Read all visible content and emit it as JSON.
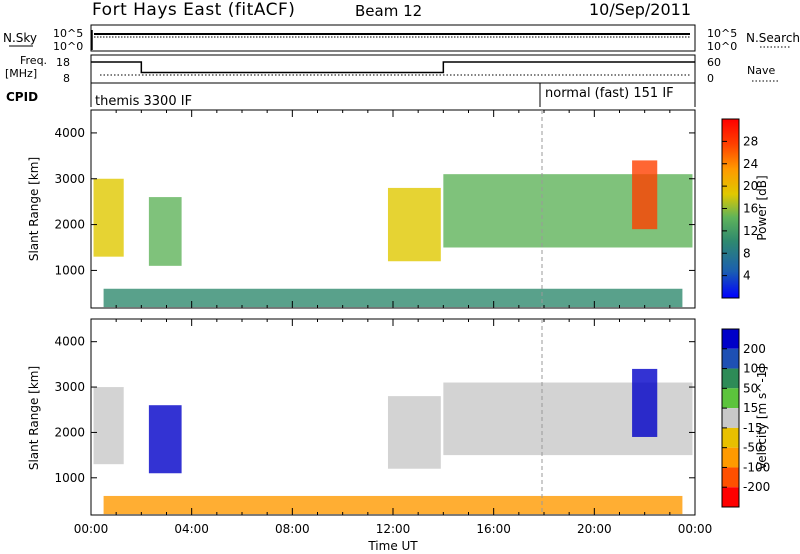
{
  "header": {
    "station": "Fort Hays East (fitACF)",
    "beam": "Beam 12",
    "date": "10/Sep/2011"
  },
  "noise_panel": {
    "left_label": "N.Sky",
    "right_label": "N.Search",
    "left_ticks": [
      "10^5",
      "10^0"
    ],
    "right_ticks": [
      "10^5",
      "10^0"
    ]
  },
  "freq_panel": {
    "left_label_1": "Freq.",
    "left_label_2": "[MHz]",
    "left_ticks": [
      "18",
      "8"
    ],
    "right_label": "Nave",
    "right_ticks": [
      "60",
      "0"
    ],
    "freq_levels": [
      {
        "from_hour": 0.0,
        "to_hour": 2.0,
        "mhz": 18
      },
      {
        "from_hour": 2.0,
        "to_hour": 14.0,
        "mhz": 13
      },
      {
        "from_hour": 14.0,
        "to_hour": 24.0,
        "mhz": 18
      }
    ]
  },
  "cpid": {
    "label": "CPID",
    "segments": [
      {
        "start_hour": 0.0,
        "text": "themis 3300 IF"
      },
      {
        "start_hour": 18.0,
        "text": "normal (fast) 151 IF"
      }
    ]
  },
  "x_axis": {
    "label": "Time UT",
    "ticks": [
      "00:00",
      "04:00",
      "08:00",
      "12:00",
      "16:00",
      "20:00",
      "00:00"
    ]
  },
  "chart_data": [
    {
      "type": "heatmap",
      "title": "",
      "xlabel": "Time UT",
      "ylabel": "Slant Range [km]",
      "xlim": [
        0,
        24
      ],
      "ylim": [
        180,
        4500
      ],
      "yticks": [
        "1000",
        "2000",
        "3000",
        "4000"
      ],
      "colorbar": {
        "label": "Power [dB]",
        "ticks": [
          "4",
          "8",
          "12",
          "16",
          "20",
          "24",
          "28"
        ],
        "range": [
          0,
          32
        ],
        "colors": [
          "#0000ff",
          "#1b5fb0",
          "#2f8a6e",
          "#5fb35a",
          "#e0c800",
          "#ff9a00",
          "#ff4000",
          "#ff0000"
        ]
      },
      "echo_regions": [
        {
          "t0": 0.1,
          "t1": 1.3,
          "r0": 1300,
          "r1": 3000,
          "level": 18
        },
        {
          "t0": 2.3,
          "t1": 3.6,
          "r0": 1100,
          "r1": 2600,
          "level": 12
        },
        {
          "t0": 11.8,
          "t1": 13.9,
          "r0": 1200,
          "r1": 2800,
          "level": 16
        },
        {
          "t0": 14.0,
          "t1": 23.9,
          "r0": 1500,
          "r1": 3100,
          "level": 14
        },
        {
          "t0": 21.5,
          "t1": 22.5,
          "r0": 1900,
          "r1": 3400,
          "level": 26
        },
        {
          "t0": 0.5,
          "t1": 23.5,
          "r0": 200,
          "r1": 600,
          "level": 8
        }
      ]
    },
    {
      "type": "heatmap",
      "title": "",
      "xlabel": "Time UT",
      "ylabel": "Slant Range [km]",
      "xlim": [
        0,
        24
      ],
      "ylim": [
        180,
        4500
      ],
      "yticks": [
        "1000",
        "2000",
        "3000",
        "4000"
      ],
      "colorbar": {
        "label": "Velocity [m s^-1]",
        "ticks": [
          "200",
          "100",
          "50",
          "15",
          "-15",
          "-50",
          "-100",
          "-200"
        ],
        "colors": [
          "#0000c8",
          "#1e50b4",
          "#2e8b57",
          "#5cc43c",
          "#c8c8c8",
          "#e8c000",
          "#ff9a00",
          "#ff5000",
          "#ff0000"
        ]
      },
      "echo_regions": [
        {
          "t0": 0.1,
          "t1": 1.3,
          "r0": 1300,
          "r1": 3000,
          "velocity": 0
        },
        {
          "t0": 2.3,
          "t1": 3.6,
          "r0": 1100,
          "r1": 2600,
          "velocity": 210
        },
        {
          "t0": 11.8,
          "t1": 13.9,
          "r0": 1200,
          "r1": 2800,
          "velocity": 0
        },
        {
          "t0": 14.0,
          "t1": 23.9,
          "r0": 1500,
          "r1": 3100,
          "velocity": 0
        },
        {
          "t0": 21.5,
          "t1": 22.5,
          "r0": 1900,
          "r1": 3400,
          "velocity": 200
        },
        {
          "t0": 0.5,
          "t1": 23.5,
          "r0": 200,
          "r1": 600,
          "velocity": -50
        }
      ]
    }
  ]
}
